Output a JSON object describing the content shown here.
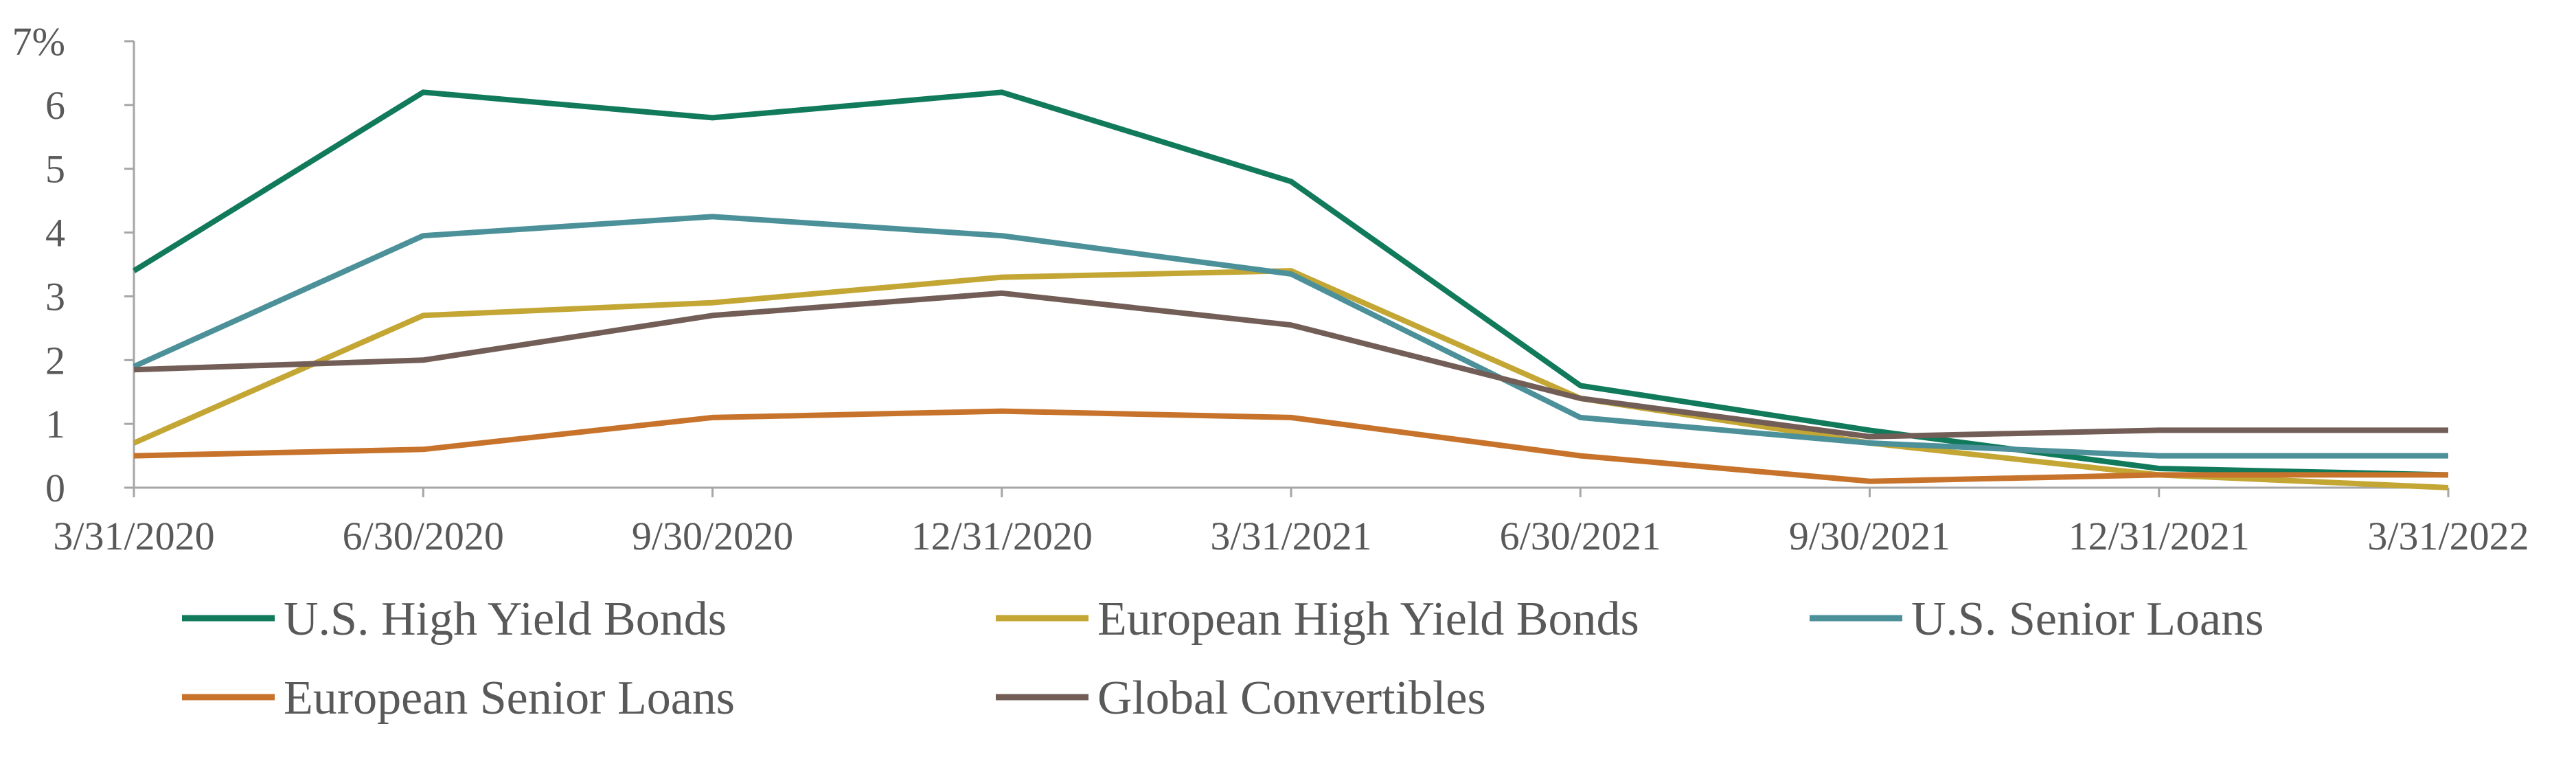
{
  "chart_data": {
    "type": "line",
    "categories": [
      "3/31/2020",
      "6/30/2020",
      "9/30/2020",
      "12/31/2020",
      "3/31/2021",
      "6/30/2021",
      "9/30/2021",
      "12/31/2021",
      "3/31/2022"
    ],
    "y_ticks": [
      "0",
      "1",
      "2",
      "3",
      "4",
      "5",
      "6",
      "7%"
    ],
    "ylim": [
      0,
      7
    ],
    "grid": false,
    "legend_position": "bottom",
    "series": [
      {
        "name": "U.S. High Yield Bonds",
        "color": "#117A5B",
        "values": [
          3.4,
          6.2,
          5.8,
          6.2,
          4.8,
          1.6,
          0.9,
          0.3,
          0.2
        ]
      },
      {
        "name": "European High Yield Bonds",
        "color": "#C3A633",
        "values": [
          0.7,
          2.7,
          2.9,
          3.3,
          3.4,
          1.4,
          0.7,
          0.2,
          0.0
        ]
      },
      {
        "name": "U.S. Senior Loans",
        "color": "#4C9199",
        "values": [
          1.9,
          3.95,
          4.25,
          3.95,
          3.35,
          1.1,
          0.7,
          0.5,
          0.5
        ]
      },
      {
        "name": "European Senior Loans",
        "color": "#C8732B",
        "values": [
          0.5,
          0.6,
          1.1,
          1.2,
          1.1,
          0.5,
          0.1,
          0.2,
          0.2
        ]
      },
      {
        "name": "Global Convertibles",
        "color": "#725E57",
        "values": [
          1.85,
          2.0,
          2.7,
          3.05,
          2.55,
          1.4,
          0.8,
          0.9,
          0.9
        ]
      }
    ]
  }
}
